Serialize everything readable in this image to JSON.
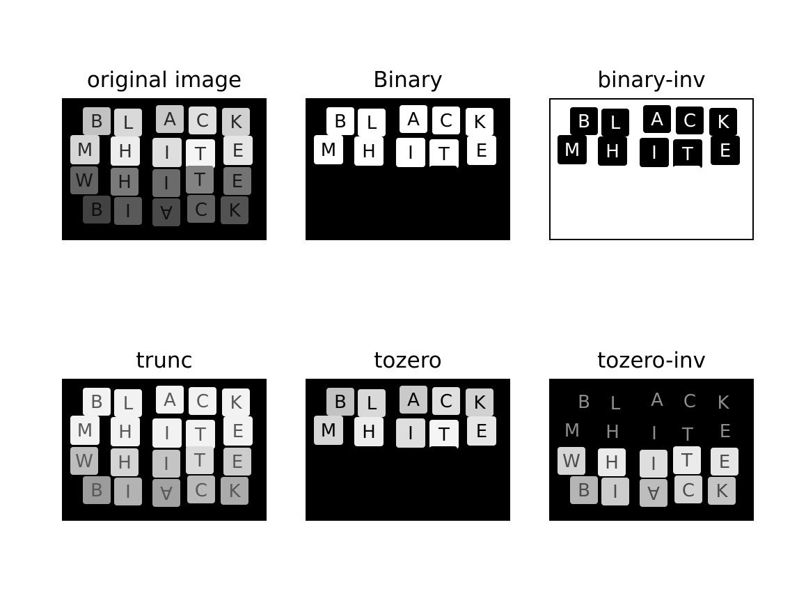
{
  "panels": [
    {
      "title": "original image",
      "mode": "original"
    },
    {
      "title": "Binary",
      "mode": "binary"
    },
    {
      "title": "binary-inv",
      "mode": "binary-inv"
    },
    {
      "title": "trunc",
      "mode": "trunc"
    },
    {
      "title": "tozero",
      "mode": "tozero"
    },
    {
      "title": "tozero-inv",
      "mode": "tozero-inv"
    }
  ],
  "block_letters": {
    "top_row": [
      "B",
      "L",
      "A",
      "C",
      "K"
    ],
    "middle_row": [
      "M",
      "H",
      "I",
      "T",
      "E"
    ],
    "reflection_row": [
      "W",
      "H",
      "I",
      "T",
      "E"
    ],
    "bottom_row": [
      "B",
      "I",
      "A",
      "C",
      "K"
    ]
  }
}
